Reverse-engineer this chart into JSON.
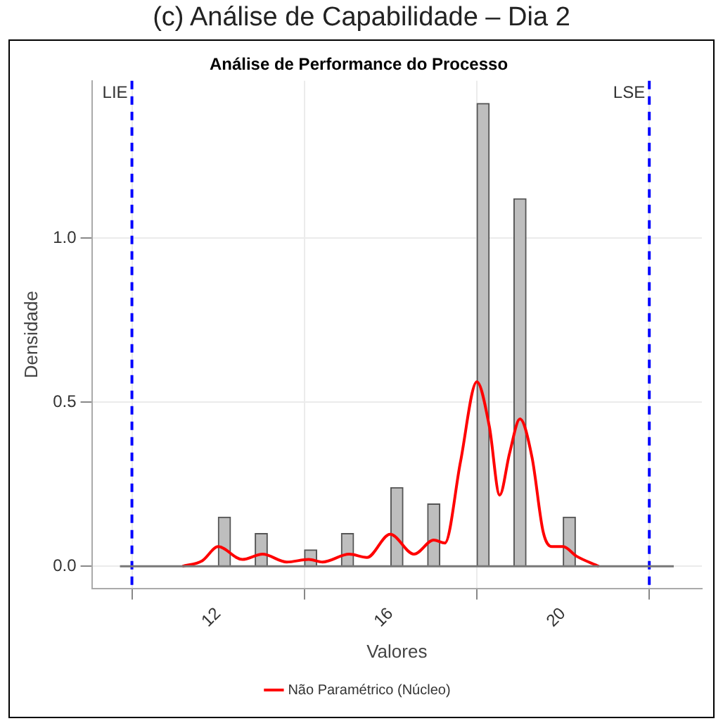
{
  "chart_data": {
    "type": "histogram",
    "title": "(c) Análise de Capabilidade – Dia 2",
    "subtitle": "Análise de Performance do Processo",
    "xlabel": "Valores",
    "ylabel": "Densidade",
    "xlim": [
      9.07,
      23.22
    ],
    "xticks": [
      12,
      16,
      20
    ],
    "ylim": [
      -0.067,
      1.479
    ],
    "yticks": [
      {
        "value": 0,
        "label": "0.0"
      },
      {
        "value": 0.5,
        "label": "0.5"
      },
      {
        "value": 1,
        "label": "1.0"
      }
    ],
    "grid": true,
    "legend": "bottom",
    "series": [
      {
        "color": "#bebebe",
        "bins": [
          12,
          12.29,
          12.57,
          12.86,
          13.14,
          13.43,
          13.71,
          14,
          14.29,
          14.57,
          14.86,
          15.14,
          15.43,
          15.71,
          16,
          16.29,
          16.57,
          16.86,
          17.14,
          17.43,
          17.71,
          18,
          18.29,
          18.57,
          18.86,
          19.14,
          19.43,
          19.71,
          20,
          20.29
        ],
        "values": [
          0.15,
          0,
          0,
          0.1,
          0,
          0,
          0,
          0.05,
          0,
          0,
          0.1,
          0,
          0,
          0,
          0.24,
          0,
          0,
          0.19,
          0,
          0,
          0,
          1.41,
          0,
          0,
          1.12,
          0,
          0,
          0,
          0.15
        ]
      },
      {
        "type": "line",
        "name": "Não Paramétrico (Núcleo)",
        "color": "#ff0000",
        "x": [
          11.17,
          11.63,
          12.0,
          12.56,
          13.03,
          13.59,
          14.1,
          14.42,
          15.04,
          15.45,
          15.99,
          16.54,
          17.0,
          17.26,
          17.62,
          18.0,
          18.29,
          18.53,
          18.76,
          19.0,
          19.28,
          19.54,
          19.74,
          20.0,
          20.31,
          20.83
        ],
        "values": [
          0,
          0.017,
          0.06,
          0.021,
          0.037,
          0.013,
          0.021,
          0.013,
          0.037,
          0.027,
          0.098,
          0.037,
          0.08,
          0.071,
          0.318,
          0.562,
          0.426,
          0.217,
          0.345,
          0.449,
          0.332,
          0.104,
          0.06,
          0.06,
          0.031,
          0
        ]
      }
    ],
    "ref_lines": [
      {
        "axis": "x",
        "value": 10,
        "label": "LIE",
        "color": "#0000ff",
        "line_style": "dashed"
      },
      {
        "axis": "x",
        "value": 22,
        "label": "LSE",
        "color": "#0000ff",
        "line_style": "dashed"
      },
      {
        "axis": "y",
        "value": 0,
        "label": null,
        "color": "#777777",
        "line_style": "solid"
      }
    ]
  }
}
